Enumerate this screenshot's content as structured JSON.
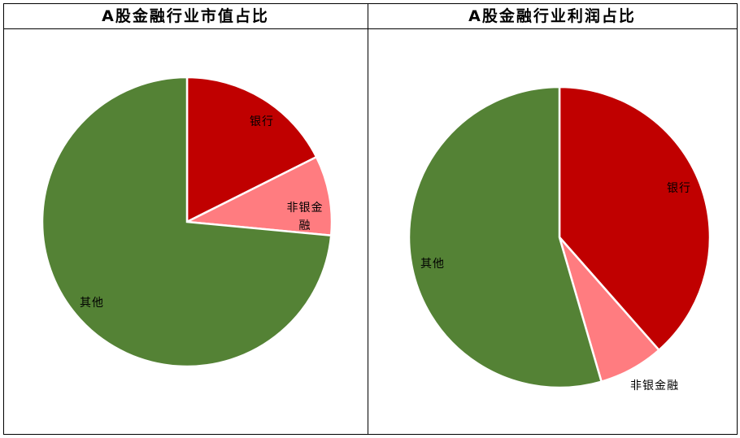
{
  "chart_data": [
    {
      "type": "pie",
      "title": "A股金融行业市值占比",
      "categories": [
        "银行",
        "非银金融",
        "其他"
      ],
      "values": [
        17.6,
        8.9,
        73.5
      ],
      "colors": [
        "#c00000",
        "#ff7c80",
        "#548235"
      ]
    },
    {
      "type": "pie",
      "title": "A股金融行业利润占比",
      "categories": [
        "银行",
        "非银金融",
        "其他"
      ],
      "values": [
        38.5,
        7.0,
        54.5
      ],
      "colors": [
        "#c00000",
        "#ff7c80",
        "#548235"
      ]
    }
  ]
}
